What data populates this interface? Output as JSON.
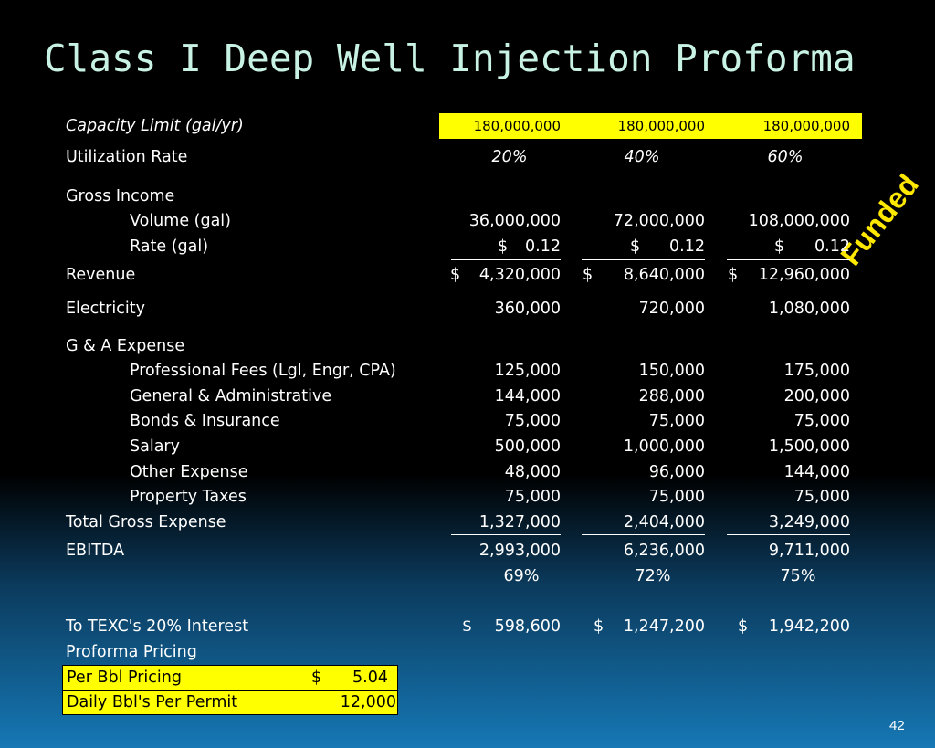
{
  "title": "Class I Deep Well Injection Proforma",
  "stamp": "Funded",
  "page_number": "42",
  "capacity": {
    "label": "Capacity Limit (gal/yr)",
    "values": [
      "180,000,000",
      "180,000,000",
      "180,000,000"
    ]
  },
  "utilization": {
    "label": "Utilization Rate",
    "values": [
      "20%",
      "40%",
      "60%"
    ]
  },
  "gross_income": {
    "label": "Gross Income",
    "volume": {
      "label": "Volume (gal)",
      "values": [
        "36,000,000",
        "72,000,000",
        "108,000,000"
      ]
    },
    "rate": {
      "label": "Rate (gal)",
      "symbol": "$",
      "values": [
        "0.12",
        "0.12",
        "0.12"
      ]
    }
  },
  "revenue": {
    "label": "Revenue",
    "symbol": "$",
    "values": [
      "4,320,000",
      "8,640,000",
      "12,960,000"
    ]
  },
  "electricity": {
    "label": "Electricity",
    "values": [
      "360,000",
      "720,000",
      "1,080,000"
    ]
  },
  "ga_expense": {
    "label": "G & A Expense",
    "items": [
      {
        "label": "Professional Fees (Lgl, Engr, CPA)",
        "values": [
          "125,000",
          "150,000",
          "175,000"
        ]
      },
      {
        "label": "General & Administrative",
        "values": [
          "144,000",
          "288,000",
          "200,000"
        ]
      },
      {
        "label": "Bonds & Insurance",
        "values": [
          "75,000",
          "75,000",
          "75,000"
        ]
      },
      {
        "label": "Salary",
        "values": [
          "500,000",
          "1,000,000",
          "1,500,000"
        ]
      },
      {
        "label": "Other Expense",
        "values": [
          "48,000",
          "96,000",
          "144,000"
        ]
      },
      {
        "label": "Property Taxes",
        "values": [
          "75,000",
          "75,000",
          "75,000"
        ]
      }
    ]
  },
  "total_gross_expense": {
    "label": "Total Gross Expense",
    "values": [
      "1,327,000",
      "2,404,000",
      "3,249,000"
    ]
  },
  "ebitda": {
    "label": "EBITDA",
    "values": [
      "2,993,000",
      "6,236,000",
      "9,711,000"
    ],
    "margins": [
      "69%",
      "72%",
      "75%"
    ]
  },
  "texc_interest": {
    "label": "To TEXC's 20% Interest",
    "symbol": "$",
    "values": [
      "598,600",
      "1,247,200",
      "1,942,200"
    ]
  },
  "proforma_pricing": {
    "label": "Proforma Pricing",
    "per_bbl": {
      "label": "Per Bbl Pricing",
      "symbol": "$",
      "value": "5.04"
    },
    "daily_bbls": {
      "label": "Daily Bbl's Per Permit",
      "value": "12,000"
    }
  }
}
